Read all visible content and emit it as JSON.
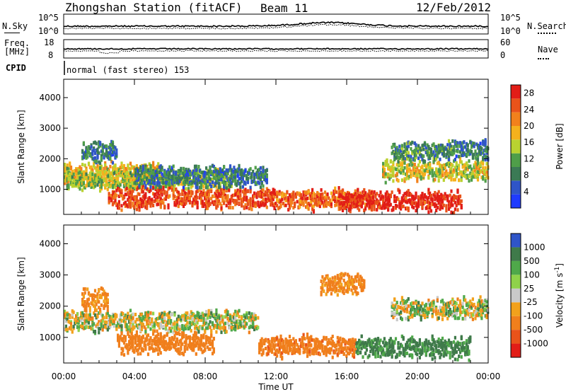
{
  "header": {
    "station_title": "Zhongshan Station (fitACF)",
    "beam_label": "Beam 11",
    "date_label": "12/Feb/2012"
  },
  "noise_panel": {
    "left_label": "N.Sky",
    "right_label": "N.Search",
    "left_ticks": [
      "10^5",
      "10^0"
    ],
    "right_ticks": [
      "10^5",
      "10^0"
    ]
  },
  "freq_panel": {
    "left_label_line1": "Freq.",
    "left_label_line2": "[MHz]",
    "right_label": "Nave",
    "left_ticks": [
      "18",
      "8"
    ],
    "right_ticks": [
      "60",
      "0"
    ]
  },
  "cpid": {
    "label": "CPID",
    "value": "normal (fast stereo) 153"
  },
  "chart_data": [
    {
      "type": "heatmap",
      "title": "",
      "xlabel": "Time UT",
      "ylabel": "Slant Range [km]",
      "x_ticks": [
        "00:00",
        "04:00",
        "08:00",
        "12:00",
        "16:00",
        "20:00",
        "00:00"
      ],
      "y_ticks": [
        1000,
        2000,
        3000,
        4000
      ],
      "ylim": [
        180,
        4600
      ],
      "colorbar": {
        "label": "Power [dB]",
        "ticks": [
          4,
          8,
          12,
          16,
          20,
          24,
          28
        ],
        "range": [
          0,
          30
        ],
        "colors": [
          "#1f3bff",
          "#2f55c8",
          "#3b7a55",
          "#4f9e49",
          "#b9d230",
          "#f5b11d",
          "#f2811c",
          "#e9531a",
          "#e21d17"
        ]
      },
      "bands": [
        {
          "t_start": 0.0,
          "t_end": 5.5,
          "range_km": 1500,
          "power_db": 18
        },
        {
          "t_start": 0.0,
          "t_end": 9.5,
          "range_km": 1300,
          "power_db": 14
        },
        {
          "t_start": 2.5,
          "t_end": 12.0,
          "range_km": 700,
          "power_db": 26
        },
        {
          "t_start": 4.0,
          "t_end": 11.5,
          "range_km": 1400,
          "power_db": 8
        },
        {
          "t_start": 1.0,
          "t_end": 3.0,
          "range_km": 2200,
          "power_db": 8
        },
        {
          "t_start": 12.0,
          "t_end": 17.5,
          "range_km": 650,
          "power_db": 24
        },
        {
          "t_start": 15.5,
          "t_end": 22.5,
          "range_km": 600,
          "power_db": 28
        },
        {
          "t_start": 18.0,
          "t_end": 24.0,
          "range_km": 1600,
          "power_db": 16
        },
        {
          "t_start": 18.5,
          "t_end": 22.0,
          "range_km": 2200,
          "power_db": 10
        },
        {
          "t_start": 22.0,
          "t_end": 24.0,
          "range_km": 2300,
          "power_db": 8
        }
      ]
    },
    {
      "type": "heatmap",
      "title": "",
      "xlabel": "Time UT",
      "ylabel": "Slant Range [km]",
      "x_ticks": [
        "00:00",
        "04:00",
        "08:00",
        "12:00",
        "16:00",
        "20:00",
        "00:00"
      ],
      "y_ticks": [
        1000,
        2000,
        3000,
        4000
      ],
      "ylim": [
        180,
        4600
      ],
      "colorbar": {
        "label": "Velocity [m s^-1]",
        "ticks": [
          "1000",
          "500",
          "100",
          "25",
          "-25",
          "-100",
          "-500",
          "-1000"
        ],
        "colors": [
          "#2f55c8",
          "#3f7a4a",
          "#4fa84a",
          "#8fd24a",
          "#c9c9c9",
          "#f2a11c",
          "#f07f1c",
          "#e9531a",
          "#e21d17"
        ]
      },
      "bands": [
        {
          "t_start": 0.0,
          "t_end": 11.0,
          "range_km": 1500,
          "velocity": 0
        },
        {
          "t_start": 1.0,
          "t_end": 2.5,
          "range_km": 2200,
          "velocity": -150
        },
        {
          "t_start": 3.0,
          "t_end": 8.5,
          "range_km": 800,
          "velocity": -300
        },
        {
          "t_start": 11.0,
          "t_end": 16.5,
          "range_km": 700,
          "velocity": -400
        },
        {
          "t_start": 16.5,
          "t_end": 23.0,
          "range_km": 650,
          "velocity": 150
        },
        {
          "t_start": 18.5,
          "t_end": 24.0,
          "range_km": 1900,
          "velocity": 0
        },
        {
          "t_start": 14.5,
          "t_end": 17.0,
          "range_km": 2700,
          "velocity": -150
        }
      ]
    }
  ]
}
